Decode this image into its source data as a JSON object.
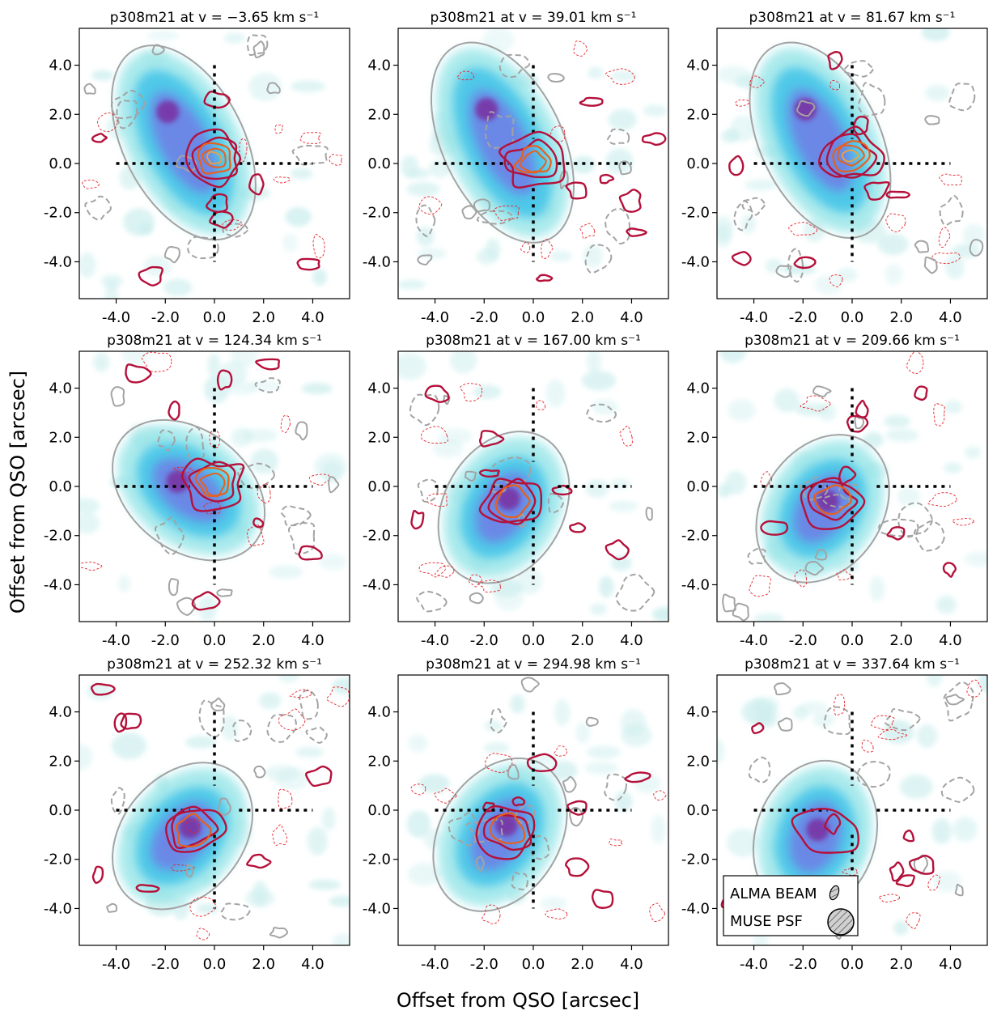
{
  "figure": {
    "xlabel": "Offset from QSO [arcsec]",
    "ylabel": "Offset from QSO [arcsec]"
  },
  "colors": {
    "grey_contour": "#a3a3a3",
    "red_contour": "#b5103a",
    "orange_contour": "#e8601c",
    "thin_red_dashed": "#e8232a",
    "crosshair": "#000000"
  },
  "legend": {
    "alma_beam": "ALMA BEAM",
    "muse_psf": "MUSE PSF"
  },
  "chart_data": [
    {
      "type": "heatmap",
      "title": "p308m21 at v = −3.65 km s⁻¹",
      "velocity_kms": -3.65,
      "xlim": [
        -5.5,
        5.5
      ],
      "ylim": [
        -5.5,
        5.5
      ],
      "xticks": [
        "-4.0",
        "-2.0",
        "0.0",
        "2.0",
        "4.0"
      ],
      "yticks": [
        "-4.0",
        "-2.0",
        "0.0",
        "2.0",
        "4.0"
      ],
      "qso_emission": {
        "x": 0.0,
        "y": 0.2,
        "strength": 5
      },
      "halo_peak": {
        "x": -1.9,
        "y": 2.1
      }
    },
    {
      "type": "heatmap",
      "title": "p308m21 at v = 39.01 km s⁻¹",
      "velocity_kms": 39.01,
      "xlim": [
        -5.5,
        5.5
      ],
      "ylim": [
        -5.5,
        5.5
      ],
      "xticks": [
        "-4.0",
        "-2.0",
        "0.0",
        "2.0",
        "4.0"
      ],
      "yticks": [
        "-4.0",
        "-2.0",
        "0.0",
        "2.0",
        "4.0"
      ],
      "qso_emission": {
        "x": 0.0,
        "y": 0.1,
        "strength": 4
      },
      "halo_peak": {
        "x": -1.9,
        "y": 2.2
      }
    },
    {
      "type": "heatmap",
      "title": "p308m21 at v = 81.67 km s⁻¹",
      "velocity_kms": 81.67,
      "xlim": [
        -5.5,
        5.5
      ],
      "ylim": [
        -5.5,
        5.5
      ],
      "xticks": [
        "-4.0",
        "-2.0",
        "0.0",
        "2.0",
        "4.0"
      ],
      "yticks": [
        "-4.0",
        "-2.0",
        "0.0",
        "2.0",
        "4.0"
      ],
      "qso_emission": {
        "x": -0.1,
        "y": 0.3,
        "strength": 5
      },
      "halo_peak": {
        "x": -1.9,
        "y": 2.2
      }
    },
    {
      "type": "heatmap",
      "title": "p308m21 at v = 124.34 km s⁻¹",
      "velocity_kms": 124.34,
      "xlim": [
        -5.5,
        5.5
      ],
      "ylim": [
        -5.5,
        5.5
      ],
      "xticks": [
        "-4.0",
        "-2.0",
        "0.0",
        "2.0",
        "4.0"
      ],
      "yticks": [
        "-4.0",
        "-2.0",
        "0.0",
        "2.0",
        "4.0"
      ],
      "qso_emission": {
        "x": 0.0,
        "y": 0.1,
        "strength": 4
      },
      "halo_peak": {
        "x": -1.5,
        "y": 0.2
      }
    },
    {
      "type": "heatmap",
      "title": "p308m21 at v = 167.00 km s⁻¹",
      "velocity_kms": 167.0,
      "xlim": [
        -5.5,
        5.5
      ],
      "ylim": [
        -5.5,
        5.5
      ],
      "xticks": [
        "-4.0",
        "-2.0",
        "0.0",
        "2.0",
        "4.0"
      ],
      "yticks": [
        "-4.0",
        "-2.0",
        "0.0",
        "2.0",
        "4.0"
      ],
      "qso_emission": {
        "x": -0.8,
        "y": -0.6,
        "strength": 3
      },
      "halo_peak": {
        "x": -1.0,
        "y": -0.5
      }
    },
    {
      "type": "heatmap",
      "title": "p308m21 at v = 209.66 km s⁻¹",
      "velocity_kms": 209.66,
      "xlim": [
        -5.5,
        5.5
      ],
      "ylim": [
        -5.5,
        5.5
      ],
      "xticks": [
        "-4.0",
        "-2.0",
        "0.0",
        "2.0",
        "4.0"
      ],
      "yticks": [
        "-4.0",
        "-2.0",
        "0.0",
        "2.0",
        "4.0"
      ],
      "qso_emission": {
        "x": -0.8,
        "y": -0.6,
        "strength": 3
      },
      "halo_peak": {
        "x": -1.0,
        "y": -0.6
      }
    },
    {
      "type": "heatmap",
      "title": "p308m21 at v = 252.32 km s⁻¹",
      "velocity_kms": 252.32,
      "xlim": [
        -5.5,
        5.5
      ],
      "ylim": [
        -5.5,
        5.5
      ],
      "xticks": [
        "-4.0",
        "-2.0",
        "0.0",
        "2.0",
        "4.0"
      ],
      "yticks": [
        "-4.0",
        "-2.0",
        "0.0",
        "2.0",
        "4.0"
      ],
      "qso_emission": {
        "x": -1.0,
        "y": -0.8,
        "strength": 3
      },
      "halo_peak": {
        "x": -1.0,
        "y": -0.7
      }
    },
    {
      "type": "heatmap",
      "title": "p308m21 at v = 294.98 km s⁻¹",
      "velocity_kms": 294.98,
      "xlim": [
        -5.5,
        5.5
      ],
      "ylim": [
        -5.5,
        5.5
      ],
      "xticks": [
        "-4.0",
        "-2.0",
        "0.0",
        "2.0",
        "4.0"
      ],
      "yticks": [
        "-4.0",
        "-2.0",
        "0.0",
        "2.0",
        "4.0"
      ],
      "qso_emission": {
        "x": -1.0,
        "y": -0.8,
        "strength": 3
      },
      "halo_peak": {
        "x": -1.1,
        "y": -0.6
      }
    },
    {
      "type": "heatmap",
      "title": "p308m21 at v = 337.64 km s⁻¹",
      "velocity_kms": 337.64,
      "xlim": [
        -5.5,
        5.5
      ],
      "ylim": [
        -5.5,
        5.5
      ],
      "xticks": [
        "-4.0",
        "-2.0",
        "0.0",
        "2.0",
        "4.0"
      ],
      "yticks": [
        "-4.0",
        "-2.0",
        "0.0",
        "2.0",
        "4.0"
      ],
      "qso_emission": {
        "x": -1.0,
        "y": -0.8,
        "strength": 1
      },
      "halo_peak": {
        "x": -1.4,
        "y": -0.8
      },
      "has_legend": true
    }
  ]
}
